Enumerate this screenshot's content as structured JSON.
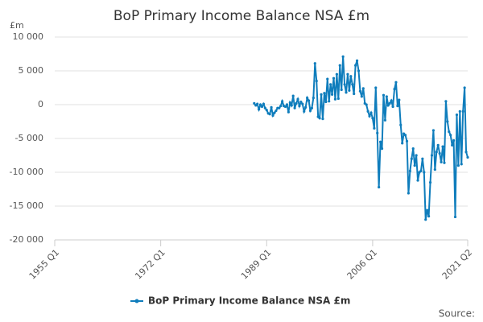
{
  "chart_data": {
    "type": "line",
    "title": "BoP Primary Income Balance NSA £m",
    "y_unit": "£m",
    "source": "Source:",
    "xlim": [
      1955,
      2021.25
    ],
    "xticks": [
      {
        "value": 1955,
        "label": "1955 Q1"
      },
      {
        "value": 1972,
        "label": "1972 Q1"
      },
      {
        "value": 1989,
        "label": "1989 Q1"
      },
      {
        "value": 2006,
        "label": "2006 Q1"
      },
      {
        "value": 2021.25,
        "label": "2021 Q2"
      }
    ],
    "ylim": [
      -20000,
      10000
    ],
    "yticks": [
      {
        "value": 10000,
        "label": "10 000"
      },
      {
        "value": 5000,
        "label": "5 000"
      },
      0,
      {
        "value": -5000,
        "label": "-5 000"
      },
      {
        "value": -10000,
        "label": "-10 000"
      },
      {
        "value": -15000,
        "label": "-15 000"
      },
      {
        "value": -20000,
        "label": "-20 000"
      }
    ],
    "grid": true,
    "legend": "bottom",
    "x": [
      1987,
      1987.25,
      1987.5,
      1987.75,
      1988,
      1988.25,
      1988.5,
      1988.75,
      1989,
      1989.25,
      1989.5,
      1989.75,
      1990,
      1990.25,
      1990.5,
      1990.75,
      1991,
      1991.25,
      1991.5,
      1991.75,
      1992,
      1992.25,
      1992.5,
      1992.75,
      1993,
      1993.25,
      1993.5,
      1993.75,
      1994,
      1994.25,
      1994.5,
      1994.75,
      1995,
      1995.25,
      1995.5,
      1995.75,
      1996,
      1996.25,
      1996.5,
      1996.75,
      1997,
      1997.25,
      1997.5,
      1997.75,
      1998,
      1998.25,
      1998.5,
      1998.75,
      1999,
      1999.25,
      1999.5,
      1999.75,
      2000,
      2000.25,
      2000.5,
      2000.75,
      2001,
      2001.25,
      2001.5,
      2001.75,
      2002,
      2002.25,
      2002.5,
      2002.75,
      2003,
      2003.25,
      2003.5,
      2003.75,
      2004,
      2004.25,
      2004.5,
      2004.75,
      2005,
      2005.25,
      2005.5,
      2005.75,
      2006,
      2006.25,
      2006.5,
      2006.75,
      2007,
      2007.25,
      2007.5,
      2007.75,
      2008,
      2008.25,
      2008.5,
      2008.75,
      2009,
      2009.25,
      2009.5,
      2009.75,
      2010,
      2010.25,
      2010.5,
      2010.75,
      2011,
      2011.25,
      2011.5,
      2011.75,
      2012,
      2012.25,
      2012.5,
      2012.75,
      2013,
      2013.25,
      2013.5,
      2013.75,
      2014,
      2014.25,
      2014.5,
      2014.75,
      2015,
      2015.25,
      2015.5,
      2015.75,
      2016,
      2016.25,
      2016.5,
      2016.75,
      2017,
      2017.25,
      2017.5,
      2017.75,
      2018,
      2018.25,
      2018.5,
      2018.75,
      2019,
      2019.25,
      2019.5,
      2019.75,
      2020,
      2020.25,
      2020.5,
      2020.75,
      2021,
      2021.25
    ],
    "series": [
      {
        "name": "BoP Primary Income Balance NSA £m",
        "color": "#0f7dbc",
        "values": [
          200,
          -100,
          100,
          -700,
          0,
          -300,
          100,
          -500,
          -800,
          -1300,
          -1400,
          -400,
          -1600,
          -1200,
          -900,
          -500,
          -500,
          -200,
          500,
          -200,
          -300,
          0,
          -1100,
          300,
          -100,
          1300,
          -500,
          200,
          800,
          -200,
          400,
          100,
          -1000,
          -400,
          1000,
          600,
          -900,
          -500,
          1000,
          6100,
          3500,
          -1800,
          -2000,
          1500,
          -2100,
          1700,
          400,
          3800,
          500,
          3000,
          1500,
          3900,
          800,
          4500,
          900,
          5800,
          2200,
          7100,
          3000,
          1800,
          4500,
          2100,
          4200,
          3000,
          1600,
          5800,
          6500,
          5000,
          2000,
          1200,
          2400,
          200,
          0,
          -1000,
          -1700,
          -1200,
          -2000,
          -3500,
          2500,
          -4200,
          -12200,
          -5500,
          -6500,
          1400,
          -2300,
          1200,
          -100,
          200,
          600,
          -300,
          2300,
          3300,
          -200,
          700,
          -3000,
          -5700,
          -4300,
          -4500,
          -5400,
          -13100,
          -9800,
          -8000,
          -6500,
          -9000,
          -7500,
          -11200,
          -10000,
          -9800,
          -8000,
          -10000,
          -17000,
          -15600,
          -16500,
          -11500,
          -7500,
          -3800,
          -9600,
          -7000,
          -6000,
          -7200,
          -8500,
          -6200,
          -8600,
          500,
          -2500,
          -4000,
          -4500,
          -6000,
          -5300,
          -16600,
          -1500,
          -9000,
          -1000,
          -8800,
          -1000,
          2500,
          -7000,
          -7800
        ]
      }
    ]
  }
}
